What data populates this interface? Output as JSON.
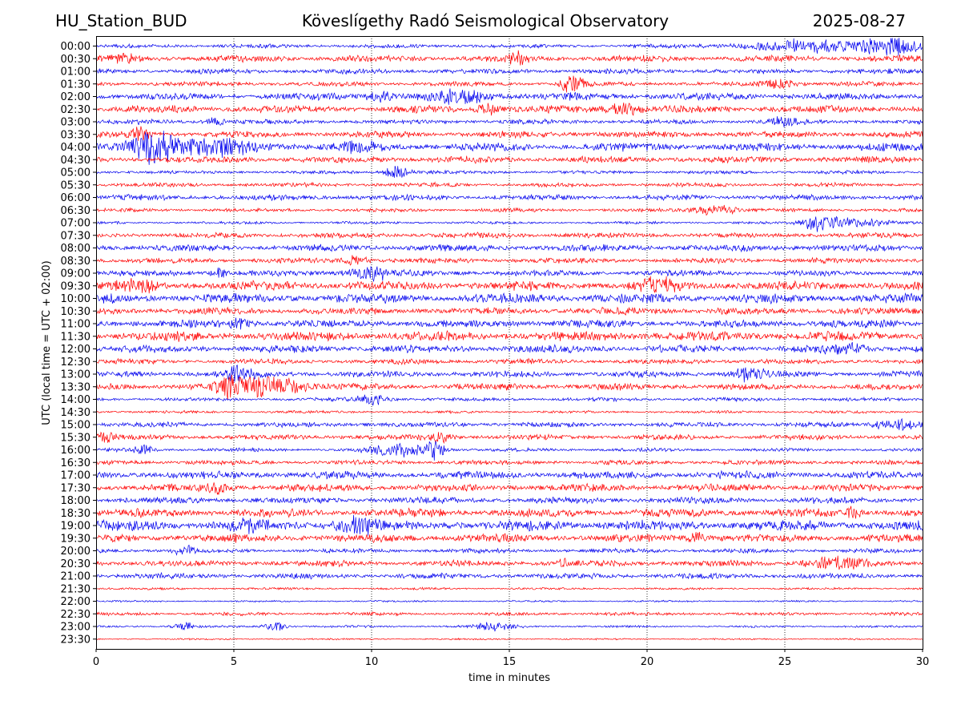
{
  "header": {
    "station": "HU_Station_BUD",
    "title": "Köveslígethy Radó Seismological Observatory",
    "date": "2025-08-27"
  },
  "chart_data": {
    "type": "line",
    "title": "Köveslígethy Radó Seismological Observatory",
    "xlabel": "time in minutes",
    "ylabel": "UTC (local time = UTC + 02:00)",
    "xlim": [
      0,
      30
    ],
    "xticks": [
      0,
      5,
      10,
      15,
      20,
      25,
      30
    ],
    "grid": "vertical dotted at x ticks",
    "colors": {
      "even_rows": "#0000ee",
      "odd_rows": "#ff0000"
    },
    "rows": [
      {
        "label": "00:00",
        "bursts": [
          [
            28.8,
            0.9,
            1.6
          ],
          [
            26.5,
            3.0,
            1.3
          ]
        ]
      },
      {
        "label": "00:30",
        "bursts": [
          [
            15.3,
            0.3,
            1.5
          ],
          [
            1.0,
            0.5,
            0.9
          ]
        ]
      },
      {
        "label": "01:00",
        "bursts": []
      },
      {
        "label": "01:30",
        "bursts": [
          [
            17.3,
            0.4,
            2.2
          ],
          [
            24.8,
            0.6,
            0.9
          ]
        ]
      },
      {
        "label": "02:00",
        "bursts": [
          [
            13.3,
            1.0,
            1.4
          ],
          [
            10.3,
            0.6,
            1.0
          ]
        ]
      },
      {
        "label": "02:30",
        "bursts": [
          [
            14.2,
            0.4,
            1.3
          ],
          [
            19.2,
            0.6,
            1.4
          ]
        ]
      },
      {
        "label": "03:00",
        "bursts": [
          [
            4.3,
            0.3,
            1.0
          ],
          [
            25.0,
            0.5,
            0.9
          ]
        ]
      },
      {
        "label": "03:30",
        "bursts": [
          [
            1.6,
            0.3,
            1.5
          ]
        ]
      },
      {
        "label": "04:00",
        "bursts": [
          [
            2.1,
            0.7,
            3.4
          ],
          [
            3.5,
            2.0,
            1.8
          ],
          [
            9.5,
            0.5,
            1.0
          ]
        ]
      },
      {
        "label": "04:30",
        "bursts": []
      },
      {
        "label": "05:00",
        "bursts": [
          [
            11.0,
            0.4,
            1.4
          ],
          [
            10.8,
            0.3,
            1.1
          ]
        ]
      },
      {
        "label": "05:30",
        "bursts": []
      },
      {
        "label": "06:00",
        "bursts": []
      },
      {
        "label": "06:30",
        "bursts": [
          [
            22.5,
            0.8,
            1.0
          ]
        ]
      },
      {
        "label": "07:00",
        "bursts": [
          [
            26.2,
            0.6,
            1.8
          ],
          [
            27.5,
            1.0,
            1.1
          ]
        ]
      },
      {
        "label": "07:30",
        "bursts": []
      },
      {
        "label": "08:00",
        "bursts": []
      },
      {
        "label": "08:30",
        "bursts": [
          [
            9.5,
            0.5,
            1.0
          ]
        ]
      },
      {
        "label": "09:00",
        "bursts": [
          [
            10.0,
            0.8,
            1.3
          ],
          [
            4.5,
            0.3,
            1.1
          ]
        ]
      },
      {
        "label": "09:30",
        "bursts": [
          [
            20.4,
            0.6,
            1.4
          ],
          [
            1.6,
            0.6,
            1.0
          ]
        ]
      },
      {
        "label": "10:00",
        "bursts": []
      },
      {
        "label": "10:30",
        "bursts": []
      },
      {
        "label": "11:00",
        "bursts": [
          [
            5.2,
            0.4,
            1.0
          ]
        ]
      },
      {
        "label": "11:30",
        "bursts": []
      },
      {
        "label": "12:00",
        "bursts": [
          [
            27.3,
            0.6,
            1.0
          ]
        ]
      },
      {
        "label": "12:30",
        "bursts": []
      },
      {
        "label": "13:00",
        "bursts": [
          [
            5.2,
            0.5,
            1.6
          ],
          [
            23.7,
            0.6,
            1.3
          ]
        ]
      },
      {
        "label": "13:30",
        "bursts": [
          [
            4.7,
            0.3,
            2.0
          ],
          [
            5.7,
            1.0,
            2.4
          ],
          [
            7.0,
            0.8,
            1.4
          ]
        ]
      },
      {
        "label": "14:00",
        "bursts": [
          [
            10.0,
            0.6,
            1.1
          ]
        ]
      },
      {
        "label": "14:30",
        "bursts": []
      },
      {
        "label": "15:00",
        "bursts": [
          [
            29.0,
            0.7,
            1.5
          ]
        ]
      },
      {
        "label": "15:30",
        "bursts": [
          [
            0.3,
            0.4,
            1.1
          ],
          [
            12.5,
            0.4,
            1.1
          ]
        ]
      },
      {
        "label": "16:00",
        "bursts": [
          [
            12.3,
            0.3,
            2.5
          ],
          [
            11.0,
            1.2,
            1.3
          ],
          [
            1.7,
            0.3,
            1.3
          ]
        ]
      },
      {
        "label": "16:30",
        "bursts": []
      },
      {
        "label": "17:00",
        "bursts": []
      },
      {
        "label": "17:30",
        "bursts": [
          [
            4.4,
            0.4,
            1.0
          ]
        ]
      },
      {
        "label": "18:00",
        "bursts": []
      },
      {
        "label": "18:30",
        "bursts": [
          [
            27.5,
            0.2,
            1.7
          ]
        ]
      },
      {
        "label": "19:00",
        "bursts": [
          [
            9.5,
            0.7,
            1.7
          ],
          [
            5.5,
            0.5,
            1.0
          ]
        ]
      },
      {
        "label": "19:30",
        "bursts": [
          [
            21.8,
            0.3,
            1.3
          ]
        ]
      },
      {
        "label": "20:00",
        "bursts": [
          [
            3.2,
            0.4,
            0.9
          ]
        ]
      },
      {
        "label": "20:30",
        "bursts": [
          [
            26.8,
            1.0,
            1.3
          ],
          [
            16.9,
            0.2,
            1.0
          ]
        ]
      },
      {
        "label": "21:00",
        "bursts": []
      },
      {
        "label": "21:30",
        "bursts": []
      },
      {
        "label": "22:00",
        "bursts": []
      },
      {
        "label": "22:30",
        "bursts": []
      },
      {
        "label": "23:00",
        "bursts": [
          [
            3.2,
            0.4,
            1.2
          ],
          [
            6.5,
            0.4,
            1.0
          ],
          [
            14.5,
            0.8,
            0.9
          ]
        ]
      },
      {
        "label": "23:30",
        "bursts": []
      }
    ]
  }
}
